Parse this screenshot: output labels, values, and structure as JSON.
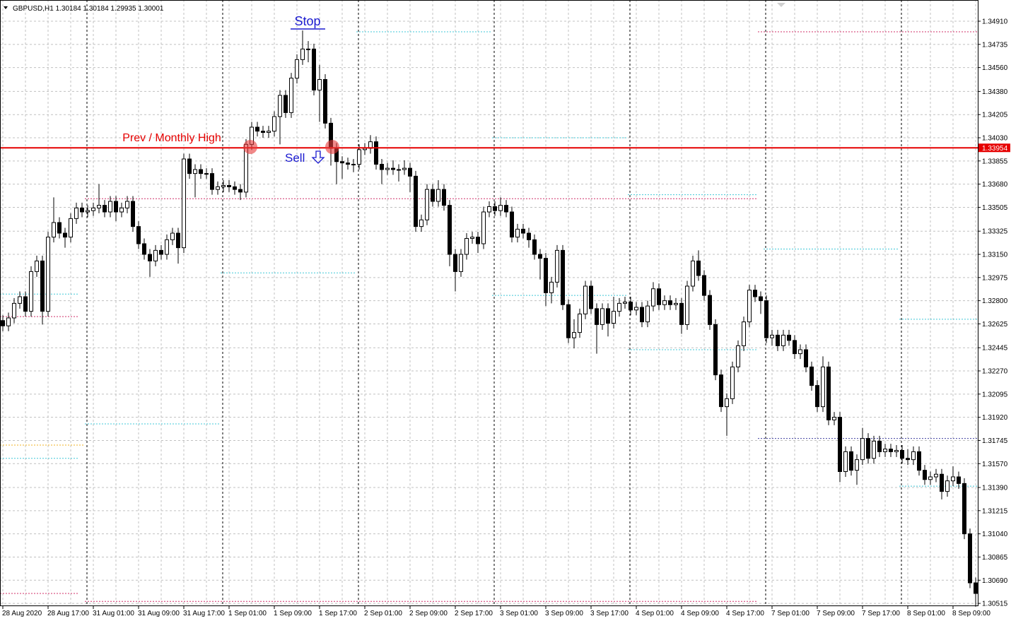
{
  "chart_data": {
    "type": "candlestick",
    "title": "GBPUSD,H1  1.30184 1.30184 1.29935 1.30001",
    "annotations": [
      "Stop",
      "Prev / Monthly High",
      "Sell"
    ],
    "hline": 1.33954,
    "hline_color": "#e60000",
    "up_color": "#ffffff",
    "down_color": "#000000",
    "grid": true,
    "ylim": [
      1.30494,
      1.3507
    ],
    "yticks": [
      {
        "value": 1.3491,
        "label": "1.34910"
      },
      {
        "value": 1.34735,
        "label": "1.34735"
      },
      {
        "value": 1.3456,
        "label": "1.34560"
      },
      {
        "value": 1.3438,
        "label": "1.34380"
      },
      {
        "value": 1.34205,
        "label": "1.34205"
      },
      {
        "value": 1.3403,
        "label": "1.34030"
      },
      {
        "value": 1.33855,
        "label": "1.33855"
      },
      {
        "value": 1.3368,
        "label": "1.33680"
      },
      {
        "value": 1.33505,
        "label": "1.33505"
      },
      {
        "value": 1.33325,
        "label": "1.33325"
      },
      {
        "value": 1.3315,
        "label": "1.33150"
      },
      {
        "value": 1.32975,
        "label": "1.32975"
      },
      {
        "value": 1.328,
        "label": "1.32800"
      },
      {
        "value": 1.32625,
        "label": "1.32625"
      },
      {
        "value": 1.32445,
        "label": "1.32445"
      },
      {
        "value": 1.3227,
        "label": "1.32270"
      },
      {
        "value": 1.32095,
        "label": "1.32095"
      },
      {
        "value": 1.3192,
        "label": "1.31920"
      },
      {
        "value": 1.31745,
        "label": "1.31745"
      },
      {
        "value": 1.3157,
        "label": "1.31570"
      },
      {
        "value": 1.3139,
        "label": "1.31390"
      },
      {
        "value": 1.31215,
        "label": "1.31215"
      },
      {
        "value": 1.3104,
        "label": "1.31040"
      },
      {
        "value": 1.30865,
        "label": "1.30865"
      },
      {
        "value": 1.3069,
        "label": "1.30690"
      },
      {
        "value": 1.30515,
        "label": "1.30515"
      }
    ],
    "categories": [
      "28 Aug 2020",
      null,
      null,
      null,
      null,
      null,
      null,
      null,
      "28 Aug 17:00",
      null,
      null,
      null,
      null,
      null,
      null,
      null,
      "31 Aug 01:00",
      null,
      null,
      null,
      null,
      null,
      null,
      null,
      "31 Aug 09:00",
      null,
      null,
      null,
      null,
      null,
      null,
      null,
      "31 Aug 17:00",
      null,
      null,
      null,
      null,
      null,
      null,
      null,
      "1 Sep 01:00",
      null,
      null,
      null,
      null,
      null,
      null,
      null,
      "1 Sep 09:00",
      null,
      null,
      null,
      null,
      null,
      null,
      null,
      "1 Sep 17:00",
      null,
      null,
      null,
      null,
      null,
      null,
      null,
      "2 Sep 01:00",
      null,
      null,
      null,
      null,
      null,
      null,
      null,
      "2 Sep 09:00",
      null,
      null,
      null,
      null,
      null,
      null,
      null,
      "2 Sep 17:00",
      null,
      null,
      null,
      null,
      null,
      null,
      null,
      "3 Sep 01:00",
      null,
      null,
      null,
      null,
      null,
      null,
      null,
      "3 Sep 09:00",
      null,
      null,
      null,
      null,
      null,
      null,
      null,
      "3 Sep 17:00",
      null,
      null,
      null,
      null,
      null,
      null,
      null,
      "4 Sep 01:00",
      null,
      null,
      null,
      null,
      null,
      null,
      null,
      "4 Sep 09:00",
      null,
      null,
      null,
      null,
      null,
      null,
      null,
      "4 Sep 17:00",
      null,
      null,
      null,
      null,
      null,
      null,
      null,
      "7 Sep 01:00",
      null,
      null,
      null,
      null,
      null,
      null,
      null,
      "7 Sep 09:00",
      null,
      null,
      null,
      null,
      null,
      null,
      null,
      "7 Sep 17:00",
      null,
      null,
      null,
      null,
      null,
      null,
      null,
      "8 Sep 01:00",
      null,
      null,
      null,
      null,
      null,
      null,
      null,
      "8 Sep 09:00",
      null,
      null,
      null,
      null
    ],
    "open": [
      1.3265,
      1.3261,
      1.3267,
      1.3278,
      1.3283,
      1.3272,
      1.3302,
      1.331,
      1.3272,
      1.3328,
      1.3339,
      1.3331,
      1.3328,
      1.3342,
      1.335,
      1.3347,
      1.3348,
      1.335,
      1.3352,
      1.3347,
      1.3355,
      1.3347,
      1.335,
      1.3355,
      1.3336,
      1.3323,
      1.3315,
      1.331,
      1.3318,
      1.3315,
      1.3326,
      1.3331,
      1.332,
      1.3387,
      1.3376,
      1.3379,
      1.3376,
      1.3376,
      1.3364,
      1.3366,
      1.3367,
      1.3366,
      1.3364,
      1.3362,
      1.3398,
      1.3411,
      1.3408,
      1.3407,
      1.3408,
      1.3419,
      1.3435,
      1.3422,
      1.3448,
      1.3462,
      1.347,
      1.347,
      1.3439,
      1.3447,
      1.3414,
      1.3395,
      1.3385,
      1.3384,
      1.3383,
      1.3383,
      1.3394,
      1.3395,
      1.34,
      1.3383,
      1.3379,
      1.338,
      1.3379,
      1.3379,
      1.338,
      1.3374,
      1.3336,
      1.3341,
      1.3364,
      1.3355,
      1.3364,
      1.3352,
      1.3315,
      1.3302,
      1.3315,
      1.3327,
      1.3328,
      1.3323,
      1.3347,
      1.3351,
      1.3348,
      1.3352,
      1.3347,
      1.3328,
      1.3334,
      1.3331,
      1.3326,
      1.3315,
      1.3312,
      1.3286,
      1.3294,
      1.3318,
      1.3277,
      1.3252,
      1.3256,
      1.327,
      1.3291,
      1.3274,
      1.3262,
      1.3274,
      1.3263,
      1.3272,
      1.3278,
      1.3279,
      1.3273,
      1.3275,
      1.3264,
      1.3276,
      1.3289,
      1.3277,
      1.328,
      1.3277,
      1.3278,
      1.3262,
      1.3291,
      1.331,
      1.3299,
      1.3284,
      1.3262,
      1.3224,
      1.32,
      1.3206,
      1.323,
      1.3246,
      1.3264,
      1.3288,
      1.3283,
      1.328,
      1.3252,
      1.3254,
      1.3246,
      1.3254,
      1.325,
      1.324,
      1.3243,
      1.323,
      1.3216,
      1.32,
      1.323,
      1.319,
      1.3192,
      1.3151,
      1.3166,
      1.3152,
      1.316,
      1.3176,
      1.3161,
      1.3174,
      1.3166,
      1.3168,
      1.3166,
      1.3167,
      1.3161,
      1.316,
      1.3166,
      1.3152,
      1.3145,
      1.3147,
      1.3149,
      1.3136,
      1.3144,
      1.3147,
      1.3142,
      1.3104,
      1.3067
    ],
    "high": [
      1.3269,
      1.3271,
      1.3282,
      1.3287,
      1.3287,
      1.3306,
      1.3314,
      1.3314,
      1.3332,
      1.3358,
      1.3343,
      1.3335,
      1.3346,
      1.3354,
      1.3354,
      1.3352,
      1.3354,
      1.3368,
      1.3356,
      1.3359,
      1.3359,
      1.3354,
      1.3359,
      1.3359,
      1.334,
      1.3327,
      1.3319,
      1.3322,
      1.3322,
      1.333,
      1.3335,
      1.3335,
      1.3391,
      1.3391,
      1.3383,
      1.3383,
      1.338,
      1.338,
      1.337,
      1.3371,
      1.3371,
      1.337,
      1.3368,
      1.3402,
      1.3415,
      1.3415,
      1.3412,
      1.3412,
      1.3423,
      1.3439,
      1.3439,
      1.3452,
      1.3466,
      1.3484,
      1.3476,
      1.3474,
      1.3458,
      1.3451,
      1.3418,
      1.3399,
      1.3389,
      1.3388,
      1.3387,
      1.3398,
      1.3399,
      1.3405,
      1.3404,
      1.3387,
      1.3384,
      1.3386,
      1.3383,
      1.3386,
      1.3384,
      1.3378,
      1.3345,
      1.3368,
      1.3368,
      1.3371,
      1.3368,
      1.3356,
      1.3319,
      1.3319,
      1.3331,
      1.3332,
      1.3332,
      1.3351,
      1.3355,
      1.3355,
      1.3358,
      1.3356,
      1.3351,
      1.3338,
      1.3338,
      1.3335,
      1.333,
      1.3319,
      1.3316,
      1.3298,
      1.3322,
      1.3322,
      1.3281,
      1.3266,
      1.3274,
      1.3295,
      1.3295,
      1.3278,
      1.3278,
      1.3278,
      1.3283,
      1.3282,
      1.3283,
      1.3283,
      1.3279,
      1.3279,
      1.328,
      1.3294,
      1.3293,
      1.3284,
      1.3284,
      1.3282,
      1.3282,
      1.3295,
      1.3314,
      1.3318,
      1.3303,
      1.3288,
      1.3266,
      1.3228,
      1.321,
      1.3234,
      1.325,
      1.3268,
      1.3292,
      1.3292,
      1.3287,
      1.3284,
      1.3258,
      1.3258,
      1.3258,
      1.3258,
      1.3254,
      1.3247,
      1.3247,
      1.3234,
      1.322,
      1.3238,
      1.3234,
      1.3196,
      1.3196,
      1.317,
      1.317,
      1.3164,
      1.3184,
      1.318,
      1.3178,
      1.3178,
      1.3172,
      1.3172,
      1.3171,
      1.3171,
      1.3168,
      1.317,
      1.317,
      1.3156,
      1.3151,
      1.3153,
      1.3153,
      1.3148,
      1.3155,
      1.3151,
      1.3146,
      1.3108,
      1.3071
    ],
    "low": [
      1.3257,
      1.3257,
      1.3263,
      1.3274,
      1.3268,
      1.3268,
      1.3298,
      1.3262,
      1.3268,
      1.3324,
      1.3327,
      1.332,
      1.3324,
      1.3338,
      1.3343,
      1.3343,
      1.3344,
      1.3346,
      1.3343,
      1.3343,
      1.334,
      1.3343,
      1.3346,
      1.3332,
      1.3319,
      1.3311,
      1.3298,
      1.3306,
      1.3311,
      1.3311,
      1.3322,
      1.3308,
      1.3316,
      1.3372,
      1.3358,
      1.3372,
      1.3372,
      1.336,
      1.336,
      1.3362,
      1.3362,
      1.336,
      1.3356,
      1.3358,
      1.3394,
      1.3404,
      1.3403,
      1.3403,
      1.3404,
      1.3398,
      1.3418,
      1.3418,
      1.3444,
      1.3458,
      1.346,
      1.3435,
      1.3415,
      1.341,
      1.3382,
      1.3368,
      1.3372,
      1.3379,
      1.3377,
      1.3379,
      1.339,
      1.3391,
      1.3379,
      1.3368,
      1.3375,
      1.3375,
      1.337,
      1.3375,
      1.3362,
      1.3332,
      1.3332,
      1.3337,
      1.3351,
      1.3351,
      1.3348,
      1.3306,
      1.3287,
      1.3298,
      1.3311,
      1.3323,
      1.3316,
      1.3319,
      1.3343,
      1.3344,
      1.3344,
      1.3343,
      1.3324,
      1.3324,
      1.3327,
      1.332,
      1.3311,
      1.3296,
      1.3276,
      1.3278,
      1.329,
      1.3273,
      1.3248,
      1.3244,
      1.3252,
      1.3266,
      1.327,
      1.324,
      1.3258,
      1.3253,
      1.3259,
      1.3268,
      1.3274,
      1.3269,
      1.3269,
      1.326,
      1.326,
      1.3272,
      1.3273,
      1.3273,
      1.3273,
      1.3273,
      1.3255,
      1.3258,
      1.3287,
      1.3295,
      1.328,
      1.3258,
      1.322,
      1.3196,
      1.3178,
      1.3202,
      1.3226,
      1.3242,
      1.326,
      1.3279,
      1.327,
      1.3248,
      1.3246,
      1.3242,
      1.3242,
      1.3246,
      1.3236,
      1.3236,
      1.3226,
      1.3212,
      1.3196,
      1.3196,
      1.3186,
      1.3186,
      1.3143,
      1.3147,
      1.3148,
      1.3141,
      1.3156,
      1.3157,
      1.3157,
      1.3162,
      1.3162,
      1.3162,
      1.3162,
      1.3157,
      1.3156,
      1.3156,
      1.3148,
      1.3141,
      1.3141,
      1.3143,
      1.313,
      1.3132,
      1.314,
      1.3138,
      1.31,
      1.3063,
      1.3049
    ],
    "close": [
      1.3261,
      1.3267,
      1.3278,
      1.3283,
      1.3272,
      1.3302,
      1.331,
      1.3272,
      1.3328,
      1.3339,
      1.3331,
      1.3328,
      1.3342,
      1.335,
      1.3347,
      1.3348,
      1.335,
      1.3352,
      1.3347,
      1.3355,
      1.3347,
      1.335,
      1.3355,
      1.3336,
      1.3323,
      1.3315,
      1.331,
      1.3318,
      1.3315,
      1.3326,
      1.3331,
      1.332,
      1.3387,
      1.3376,
      1.3379,
      1.3376,
      1.3376,
      1.3364,
      1.3366,
      1.3367,
      1.3366,
      1.3364,
      1.3362,
      1.3398,
      1.3411,
      1.3408,
      1.3407,
      1.3408,
      1.3419,
      1.3435,
      1.3422,
      1.3448,
      1.3462,
      1.347,
      1.347,
      1.3439,
      1.3447,
      1.3414,
      1.3395,
      1.3385,
      1.3384,
      1.3383,
      1.3383,
      1.3394,
      1.3395,
      1.34,
      1.3383,
      1.3379,
      1.338,
      1.3379,
      1.3379,
      1.338,
      1.3374,
      1.3336,
      1.3341,
      1.3364,
      1.3355,
      1.3364,
      1.3352,
      1.3315,
      1.3302,
      1.3315,
      1.3327,
      1.3328,
      1.3323,
      1.3347,
      1.3351,
      1.3348,
      1.3352,
      1.3347,
      1.3328,
      1.3334,
      1.3331,
      1.3326,
      1.3315,
      1.3312,
      1.3286,
      1.3294,
      1.3318,
      1.3277,
      1.3252,
      1.3256,
      1.327,
      1.3291,
      1.3274,
      1.3262,
      1.3274,
      1.3263,
      1.3272,
      1.3278,
      1.3279,
      1.3273,
      1.3275,
      1.3264,
      1.3276,
      1.3289,
      1.3277,
      1.328,
      1.3277,
      1.3278,
      1.3262,
      1.3291,
      1.331,
      1.3299,
      1.3284,
      1.3262,
      1.3224,
      1.32,
      1.3206,
      1.323,
      1.3246,
      1.3264,
      1.3288,
      1.3283,
      1.328,
      1.3252,
      1.3254,
      1.3246,
      1.3254,
      1.325,
      1.324,
      1.3243,
      1.323,
      1.3216,
      1.32,
      1.323,
      1.319,
      1.3192,
      1.3151,
      1.3166,
      1.3152,
      1.316,
      1.3176,
      1.3161,
      1.3174,
      1.3166,
      1.3168,
      1.3166,
      1.3167,
      1.3161,
      1.316,
      1.3166,
      1.3152,
      1.3145,
      1.3147,
      1.3149,
      1.3136,
      1.3144,
      1.3147,
      1.3142,
      1.3104,
      1.3067,
      1.3059
    ],
    "levels": [
      {
        "color": "#40c8d8",
        "from": 0,
        "to": 13,
        "value": 1.3285
      },
      {
        "color": "#d0306a",
        "from": 0,
        "to": 13,
        "value": 1.3268
      },
      {
        "color": "#f0b020",
        "from": 0,
        "to": 14,
        "value": 1.3171
      },
      {
        "color": "#40c8d8",
        "from": 0,
        "to": 13,
        "value": 1.3161
      },
      {
        "color": "#d0306a",
        "from": 0,
        "to": 13,
        "value": 1.3059
      },
      {
        "color": "#40c8d8",
        "from": 15,
        "to": 38,
        "value": 1.3187
      },
      {
        "color": "#d0306a",
        "from": 15,
        "to": 133,
        "value": 1.3357
      },
      {
        "color": "#d0306a",
        "from": 15,
        "to": 133,
        "value": 1.3053
      },
      {
        "color": "#40c8d8",
        "from": 39,
        "to": 62,
        "value": 1.3301
      },
      {
        "color": "#40c8d8",
        "from": 63,
        "to": 86,
        "value": 1.3483
      },
      {
        "color": "#40c8d8",
        "from": 87,
        "to": 110,
        "value": 1.3403
      },
      {
        "color": "#40c8d8",
        "from": 87,
        "to": 110,
        "value": 1.3284
      },
      {
        "color": "#40c8d8",
        "from": 111,
        "to": 133,
        "value": 1.336
      },
      {
        "color": "#40c8d8",
        "from": 111,
        "to": 133,
        "value": 1.3243
      },
      {
        "color": "#d0306a",
        "from": 134,
        "to": 172,
        "value": 1.3483
      },
      {
        "color": "#40c8d8",
        "from": 135,
        "to": 158,
        "value": 1.3319
      },
      {
        "color": "#4040a0",
        "from": 134,
        "to": 172,
        "value": 1.3176
      },
      {
        "color": "#40c8d8",
        "from": 159,
        "to": 172,
        "value": 1.3266
      },
      {
        "color": "#40c8d8",
        "from": 159,
        "to": 172,
        "value": 1.314
      }
    ]
  }
}
